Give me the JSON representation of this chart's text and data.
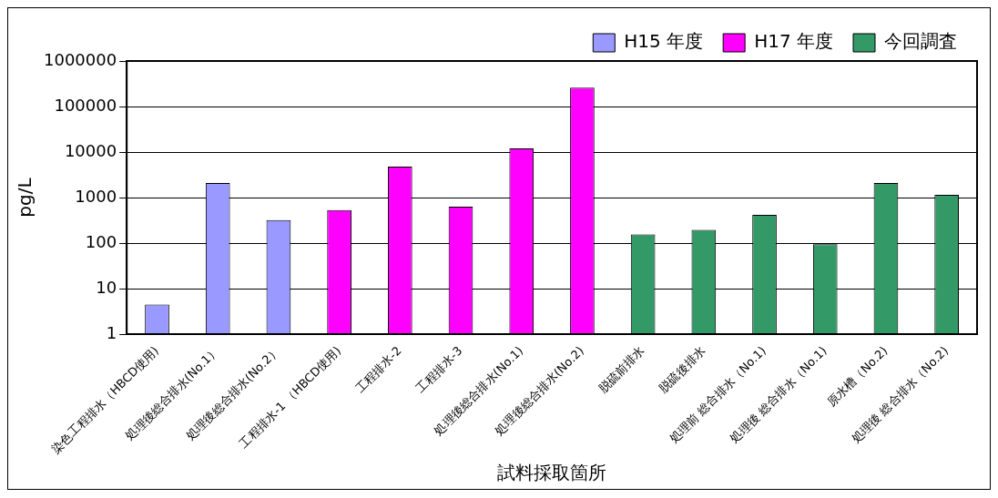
{
  "chart_data": {
    "type": "bar",
    "xlabel": "試料採取箇所",
    "ylabel": "pg/L",
    "categories": [
      "染色工程排水（HBCD使用)",
      "処理後総合排水(No.1）",
      "処理後総合排水(No.2）",
      "工程排水-1 （HBCD使用)",
      "工程排水-2",
      "工程排水-3",
      "処理後総合排水(No.1)",
      "処理後総合排水(No.2)",
      "脱硫前排水",
      "脱硫後排水",
      "処理前 総合排水（No.1)",
      "処理後 総合排水（No.1)",
      "原水槽（No.2)",
      "処理後 総合排水（No.2)"
    ],
    "series": [
      {
        "name": "H15 年度",
        "color": "#9999ff",
        "values": [
          4.5,
          2100,
          320,
          null,
          null,
          null,
          null,
          null,
          null,
          null,
          null,
          null,
          null,
          null
        ]
      },
      {
        "name": "H17 年度",
        "color": "#ff00ff",
        "values": [
          null,
          null,
          null,
          530,
          4800,
          630,
          12000,
          260000,
          null,
          null,
          null,
          null,
          null,
          null
        ]
      },
      {
        "name": "今回調査",
        "color": "#339966",
        "values": [
          null,
          null,
          null,
          null,
          null,
          null,
          null,
          null,
          155,
          195,
          420,
          95,
          2100,
          1150
        ]
      }
    ],
    "log": "y",
    "ylim": [
      1,
      1000000
    ],
    "yticks": [
      1,
      10,
      100,
      1000,
      10000,
      100000,
      1000000
    ],
    "grid": "y",
    "legend": "top right"
  }
}
